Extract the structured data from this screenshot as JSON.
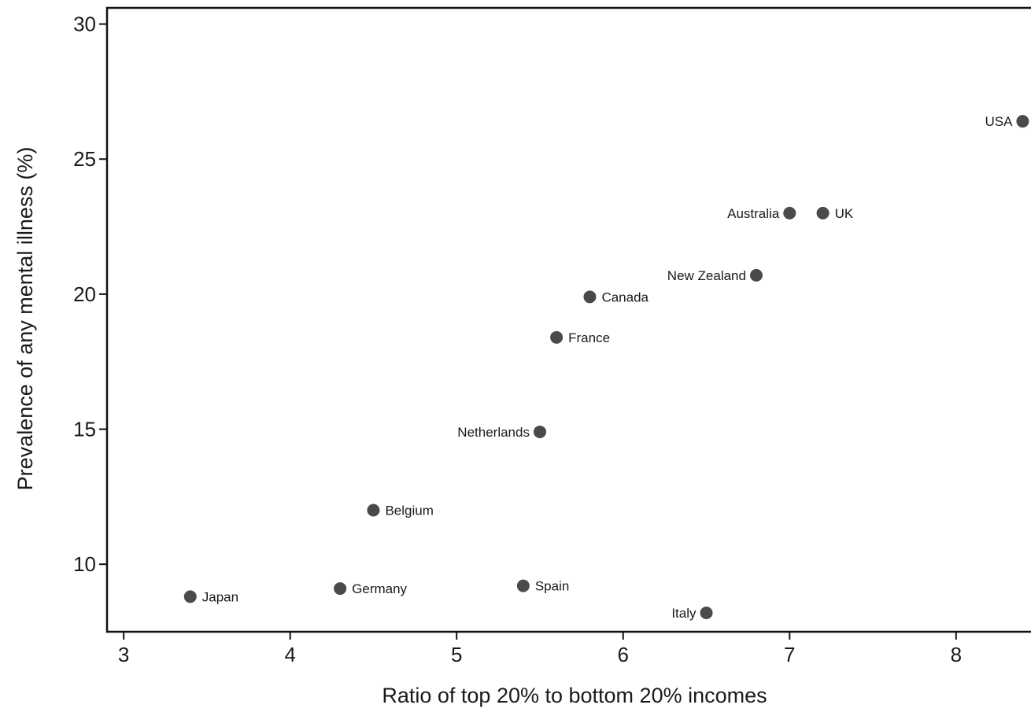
{
  "chart_data": {
    "type": "scatter",
    "title": "",
    "xlabel": "Ratio of top 20% to bottom 20% incomes",
    "ylabel": "Prevalence of any mental illness (%)",
    "xlim": [
      2.9,
      8.45
    ],
    "ylim": [
      7.5,
      30.6
    ],
    "xticks": [
      "3",
      "4",
      "5",
      "6",
      "7",
      "8"
    ],
    "yticks": [
      "10",
      "15",
      "20",
      "25",
      "30"
    ],
    "grid": false,
    "marker_color": "#4a4a4a",
    "points": [
      {
        "label": "USA",
        "x": 8.4,
        "y": 26.4,
        "label_side": "left"
      },
      {
        "label": "Australia",
        "x": 7.0,
        "y": 23.0,
        "label_side": "left"
      },
      {
        "label": "UK",
        "x": 7.2,
        "y": 23.0,
        "label_side": "right"
      },
      {
        "label": "New Zealand",
        "x": 6.8,
        "y": 20.7,
        "label_side": "left"
      },
      {
        "label": "Canada",
        "x": 5.8,
        "y": 19.9,
        "label_side": "right"
      },
      {
        "label": "France",
        "x": 5.6,
        "y": 18.4,
        "label_side": "right"
      },
      {
        "label": "Netherlands",
        "x": 5.5,
        "y": 14.9,
        "label_side": "left"
      },
      {
        "label": "Belgium",
        "x": 4.5,
        "y": 12.0,
        "label_side": "right"
      },
      {
        "label": "Japan",
        "x": 3.4,
        "y": 8.8,
        "label_side": "right"
      },
      {
        "label": "Germany",
        "x": 4.3,
        "y": 9.1,
        "label_side": "right"
      },
      {
        "label": "Spain",
        "x": 5.4,
        "y": 9.2,
        "label_side": "right"
      },
      {
        "label": "Italy",
        "x": 6.5,
        "y": 8.2,
        "label_side": "left"
      }
    ]
  }
}
